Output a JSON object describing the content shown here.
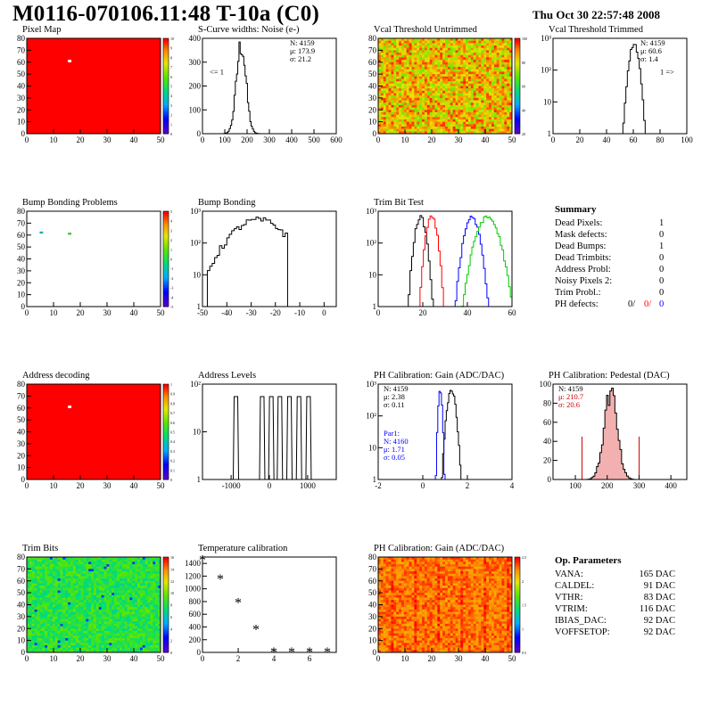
{
  "header": {
    "title": "M0116-070106.11:48 T-10a (C0)",
    "date": "Thu Oct 30 22:57:48 2008"
  },
  "colors": {
    "red": "#ff0000",
    "blue": "#0000ff",
    "black": "#000000",
    "green": "#00cc00"
  },
  "panels": [
    {
      "id": "pixel-map",
      "title": "Pixel Map",
      "type": "heatmap",
      "uniform": "#ff0000",
      "xticks": [
        "0",
        "10",
        "20",
        "30",
        "40",
        "50"
      ],
      "yticks": [
        "0",
        "10",
        "20",
        "30",
        "40",
        "50",
        "60",
        "70",
        "80"
      ],
      "zticks": [
        "0",
        "1",
        "2",
        "3",
        "4",
        "5",
        "6",
        "7",
        "8",
        "9",
        "10"
      ],
      "dead_pixel": [
        16,
        61
      ]
    },
    {
      "id": "scurve",
      "title": "S-Curve widths: Noise (e-)",
      "type": "histogram",
      "xticks": [
        "0",
        "100",
        "200",
        "300",
        "400",
        "500",
        "600"
      ],
      "yticks": [
        "0",
        "100",
        "200",
        "300",
        "400"
      ],
      "stats": [
        "N: 4159",
        "μ: 173.9",
        "σ: 21.2"
      ],
      "underflow_label": "<= 1",
      "chart_data": {
        "type": "bar",
        "mean": 173.9,
        "sigma": 21.2,
        "peak": 430,
        "xlim": [
          0,
          600
        ],
        "ylim": [
          0,
          460
        ]
      }
    },
    {
      "id": "vcal-untrimmed",
      "title": "Vcal Threshold Untrimmed",
      "type": "heatmap",
      "palette": "hot",
      "xticks": [
        "0",
        "10",
        "20",
        "30",
        "40",
        "50"
      ],
      "yticks": [
        "0",
        "10",
        "20",
        "30",
        "40",
        "50",
        "60",
        "70",
        "80"
      ],
      "zticks": [
        "20",
        "40",
        "60",
        "80",
        "100"
      ]
    },
    {
      "id": "vcal-trimmed",
      "title": "Vcal Threshold Trimmed",
      "type": "histogram-log",
      "xticks": [
        "0",
        "20",
        "40",
        "60",
        "80",
        "100"
      ],
      "yticks": [
        "1",
        "10",
        "10²",
        "10³"
      ],
      "stats": [
        "N: 4159",
        "μ: 60.6",
        "σ:  1.4"
      ],
      "overflow_label": "1 =>",
      "chart_data": {
        "type": "bar",
        "mean": 60.6,
        "sigma": 1.4,
        "peak": 1000,
        "xlim": [
          0,
          100
        ]
      }
    },
    {
      "id": "bump-problems",
      "title": "Bump Bonding Problems",
      "type": "heatmap-sparse",
      "xticks": [
        "0",
        "10",
        "20",
        "30",
        "40",
        "50"
      ],
      "yticks": [
        "0",
        "10",
        "20",
        "30",
        "40",
        "50",
        "60",
        "70",
        "80"
      ],
      "zticks": [
        "-5",
        "-4",
        "-3",
        "-2",
        "-1",
        "0",
        "1",
        "2",
        "3",
        "4",
        "5"
      ],
      "marks": [
        [
          5,
          62,
          "#22aaaa"
        ],
        [
          16,
          61,
          "#33cc33"
        ]
      ]
    },
    {
      "id": "bump-bonding",
      "title": "Bump Bonding",
      "type": "histogram-log",
      "xticks": [
        "-50",
        "-40",
        "-30",
        "-20",
        "-10",
        "0"
      ],
      "yticks": [
        "1",
        "10",
        "10²",
        "10³"
      ],
      "chart_data": {
        "type": "bar",
        "xlim": [
          -50,
          5
        ]
      }
    },
    {
      "id": "trim-bit",
      "title": "Trim Bit Test",
      "type": "histogram-log",
      "xticks": [
        "0",
        "20",
        "40",
        "60"
      ],
      "yticks": [
        "1",
        "10",
        "10²",
        "10³"
      ],
      "chart_data": {
        "type": "bar",
        "series": [
          {
            "color": "#000000",
            "mean": 19,
            "sigma": 1.5
          },
          {
            "color": "#ff0000",
            "mean": 24,
            "sigma": 1.5
          },
          {
            "color": "#0000ff",
            "mean": 42,
            "sigma": 2
          },
          {
            "color": "#00cc00",
            "mean": 49,
            "sigma": 3
          }
        ],
        "xlim": [
          0,
          60
        ]
      }
    },
    {
      "id": "address-decoding",
      "title": "Address decoding",
      "type": "heatmap",
      "uniform": "#ff0000",
      "xticks": [
        "0",
        "10",
        "20",
        "30",
        "40",
        "50"
      ],
      "yticks": [
        "0",
        "10",
        "20",
        "30",
        "40",
        "50",
        "60",
        "70",
        "80"
      ],
      "zticks": [
        "0",
        "0.1",
        "0.2",
        "0.3",
        "0.4",
        "0.5",
        "0.6",
        "0.7",
        "0.8",
        "0.9",
        "1"
      ],
      "dead_pixel": [
        16,
        61
      ]
    },
    {
      "id": "address-levels",
      "title": "Address Levels",
      "type": "histogram-log",
      "xticks": [
        "-1000",
        "0",
        "1000"
      ],
      "yticks": [
        "1",
        "10",
        "10²"
      ],
      "chart_data": {
        "type": "bar",
        "peaks": [
          -700,
          -150,
          40,
          220,
          420,
          620,
          820
        ],
        "xlim": [
          -1400,
          1400
        ]
      }
    },
    {
      "id": "ph-gain",
      "title": "PH Calibration: Gain (ADC/DAC)",
      "type": "histogram-log",
      "xticks": [
        "-2",
        "0",
        "2",
        "4"
      ],
      "yticks": [
        "1",
        "10",
        "10²",
        "10³"
      ],
      "stats": [
        "N: 4159",
        "μ: 2.38",
        "σ: 0.11"
      ],
      "par1": [
        "Par1:",
        "N: 4160",
        "μ: 1.71",
        "σ: 0.05"
      ],
      "chart_data": {
        "type": "bar",
        "series": [
          {
            "color": "#000000",
            "mean": 2.38,
            "sigma": 0.11
          },
          {
            "color": "#0000ff",
            "mean": 1.71,
            "sigma": 0.05
          }
        ],
        "xlim": [
          -2,
          6
        ]
      }
    },
    {
      "id": "ph-pedestal",
      "title": "PH Calibration: Pedestal (DAC)",
      "type": "histogram",
      "xticks": [
        "100",
        "200",
        "300",
        "400"
      ],
      "yticks": [
        "0",
        "20",
        "40",
        "60",
        "80",
        "100"
      ],
      "stats": [
        "N: 4159",
        "μ: 210.7",
        "σ: 20.6"
      ],
      "chart_data": {
        "type": "bar",
        "mean": 210.7,
        "sigma": 20.6,
        "peak": 100,
        "xlim": [
          30,
          450
        ],
        "ylim": [
          0,
          110
        ]
      }
    },
    {
      "id": "trim-bits",
      "title": "Trim Bits",
      "type": "heatmap",
      "palette": "greenish",
      "xticks": [
        "0",
        "10",
        "20",
        "30",
        "40",
        "50"
      ],
      "yticks": [
        "0",
        "10",
        "20",
        "30",
        "40",
        "50",
        "60",
        "70",
        "80"
      ],
      "zticks": [
        "0",
        "2",
        "4",
        "6",
        "8",
        "10",
        "12",
        "14",
        "16"
      ]
    },
    {
      "id": "temp-cal",
      "title": "Temperature calibration",
      "type": "scatter",
      "xticks": [
        "0",
        "2",
        "4",
        "6"
      ],
      "yticks": [
        "0",
        "200",
        "400",
        "600",
        "800",
        "1000",
        "1200",
        "1400"
      ],
      "chart_data": {
        "type": "scatter",
        "x": [
          0,
          1,
          2,
          3,
          4,
          5,
          6,
          7
        ],
        "y": [
          1450,
          1150,
          780,
          360,
          0,
          0,
          0,
          0
        ],
        "xlim": [
          0,
          7.5
        ],
        "ylim": [
          0,
          1500
        ]
      }
    },
    {
      "id": "ph-gain-map",
      "title": "PH Calibration: Gain (ADC/DAC)",
      "type": "heatmap",
      "palette": "orange",
      "xticks": [
        "0",
        "10",
        "20",
        "30",
        "40",
        "50"
      ],
      "yticks": [
        "0",
        "10",
        "20",
        "30",
        "40",
        "50",
        "60",
        "70",
        "80"
      ],
      "zticks": [
        "0.5",
        "1",
        "1.5",
        "2",
        "2.5"
      ]
    }
  ],
  "summary": {
    "title": "Summary",
    "rows": [
      {
        "label": "Dead Pixels:",
        "value": "1"
      },
      {
        "label": "Mask defects:",
        "value": "0"
      },
      {
        "label": "Dead Bumps:",
        "value": "1"
      },
      {
        "label": "Dead Trimbits:",
        "value": "0"
      },
      {
        "label": "Address Probl:",
        "value": "0"
      },
      {
        "label": "Noisy Pixels 2:",
        "value": "0"
      },
      {
        "label": "Trim Probl.:",
        "value": "0"
      }
    ],
    "ph_label": "PH defects:",
    "ph_values": [
      {
        "v": "0/",
        "c": "#000000"
      },
      {
        "v": "0/",
        "c": "#ff0000"
      },
      {
        "v": "0",
        "c": "#0000ff"
      }
    ]
  },
  "op_params": {
    "title": "Op. Parameters",
    "rows": [
      {
        "label": "VANA:",
        "value": "165 DAC"
      },
      {
        "label": "CALDEL:",
        "value": "91 DAC"
      },
      {
        "label": "VTHR:",
        "value": "83 DAC"
      },
      {
        "label": "VTRIM:",
        "value": "116 DAC"
      },
      {
        "label": "IBIAS_DAC:",
        "value": "92 DAC"
      },
      {
        "label": "VOFFSETOP:",
        "value": "92 DAC"
      }
    ]
  }
}
